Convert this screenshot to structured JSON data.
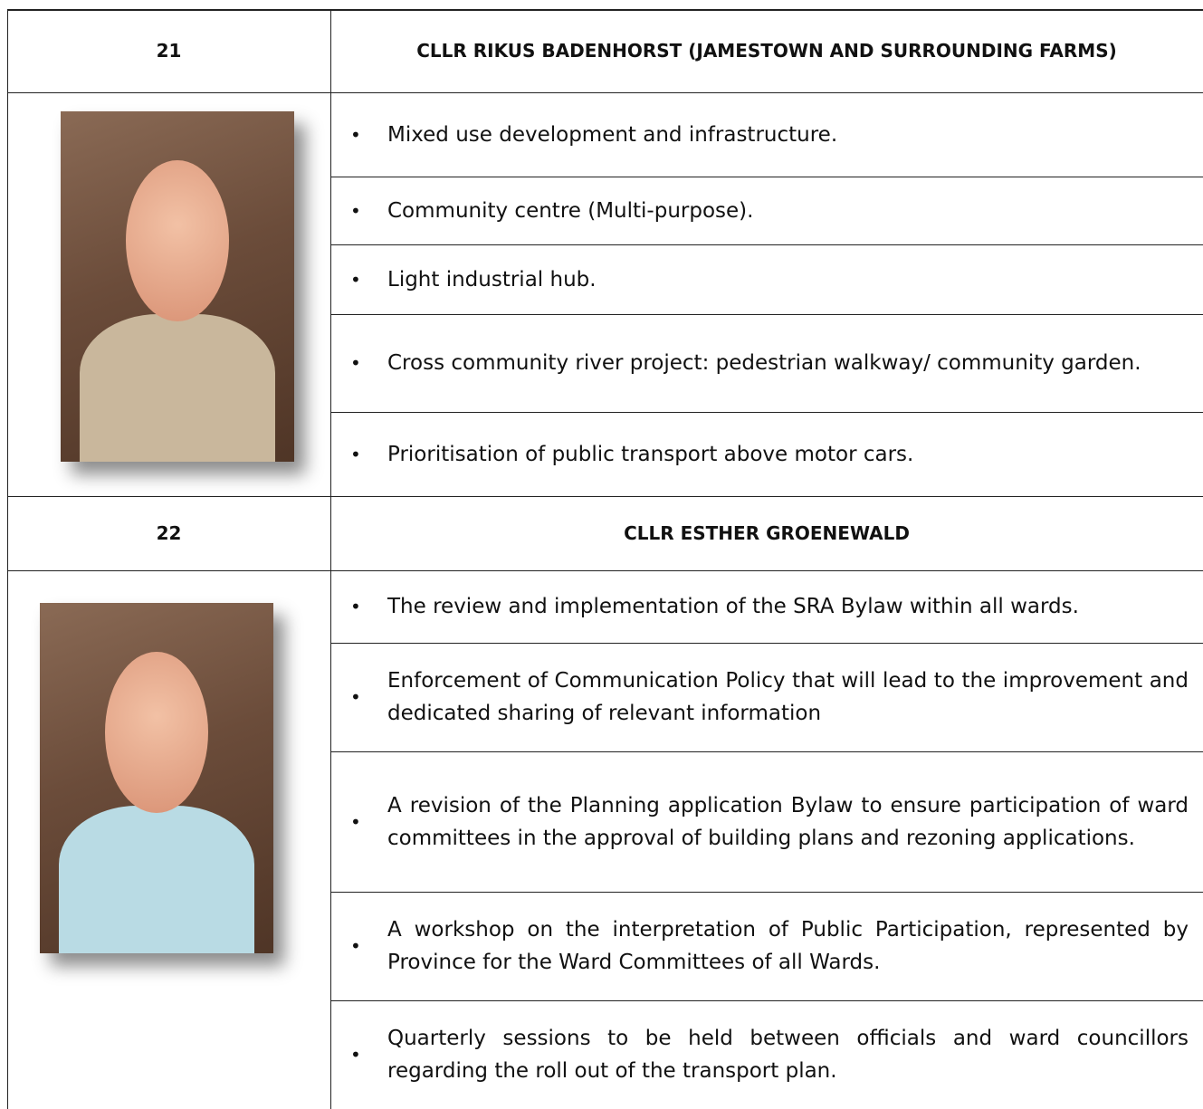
{
  "sections": [
    {
      "number": "21",
      "name": "CLLR RIKUS BADENHORST (JAMESTOWN AND SURROUNDING FARMS)",
      "items": [
        "Mixed use development and infrastructure.",
        "Community centre (Multi-purpose).",
        "Light industrial hub.",
        "Cross community river project: pedestrian walkway/ community garden.",
        "Prioritisation of public transport above motor cars."
      ]
    },
    {
      "number": "22",
      "name": "CLLR ESTHER GROENEWALD",
      "items": [
        "The review and implementation of the SRA Bylaw within all wards.",
        "Enforcement of Communication Policy that will lead to the improvement and dedicated sharing of relevant information",
        "A revision of the Planning application Bylaw to ensure participation of ward committees in the approval of building plans and rezoning applications.",
        "A workshop on the interpretation of Public Participation, represented by Province for the Ward Committees of all Wards.",
        "Quarterly sessions to be held between officials and ward councillors regarding the roll out of the transport plan."
      ]
    }
  ]
}
